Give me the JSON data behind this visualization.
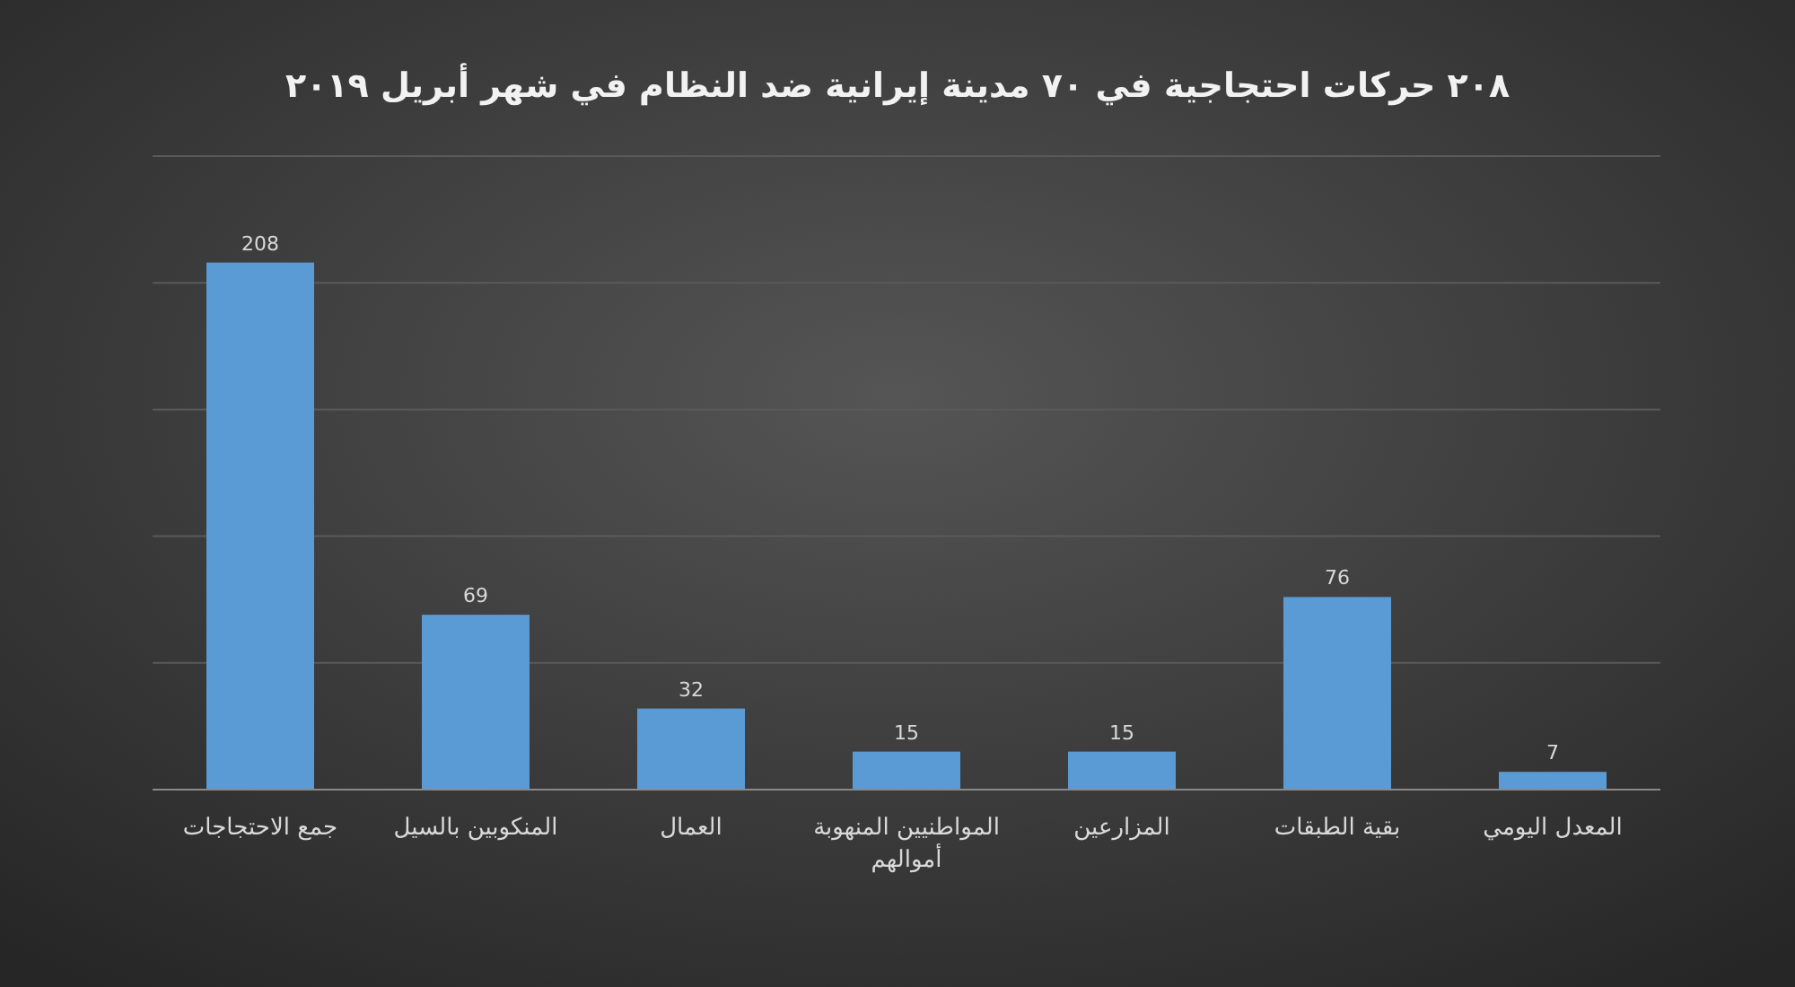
{
  "chart_data": {
    "type": "bar",
    "title": "٢٠٨ حركات احتجاجية في ٧٠ مدينة إيرانية ضد النظام في شهر أبريل ٢٠١٩",
    "categories": [
      "جمع الاحتجاجات",
      "المنكوبين بالسيل",
      "العمال",
      "المواطنيين المنهوبة أموالهم",
      "المزارعين",
      "بقية الطبقات",
      "المعدل اليومي"
    ],
    "values": [
      208,
      69,
      32,
      15,
      15,
      76,
      7
    ],
    "color": "#5b9bd5",
    "ylim": [
      0,
      250
    ],
    "yticks": [
      {
        "value": 0,
        "label": null
      },
      {
        "value": 50,
        "label": null
      },
      {
        "value": 100,
        "label": null
      },
      {
        "value": 150,
        "label": null
      },
      {
        "value": 200,
        "label": null
      },
      {
        "value": 250,
        "label": null
      }
    ],
    "grid": "y",
    "data_labels": true
  }
}
